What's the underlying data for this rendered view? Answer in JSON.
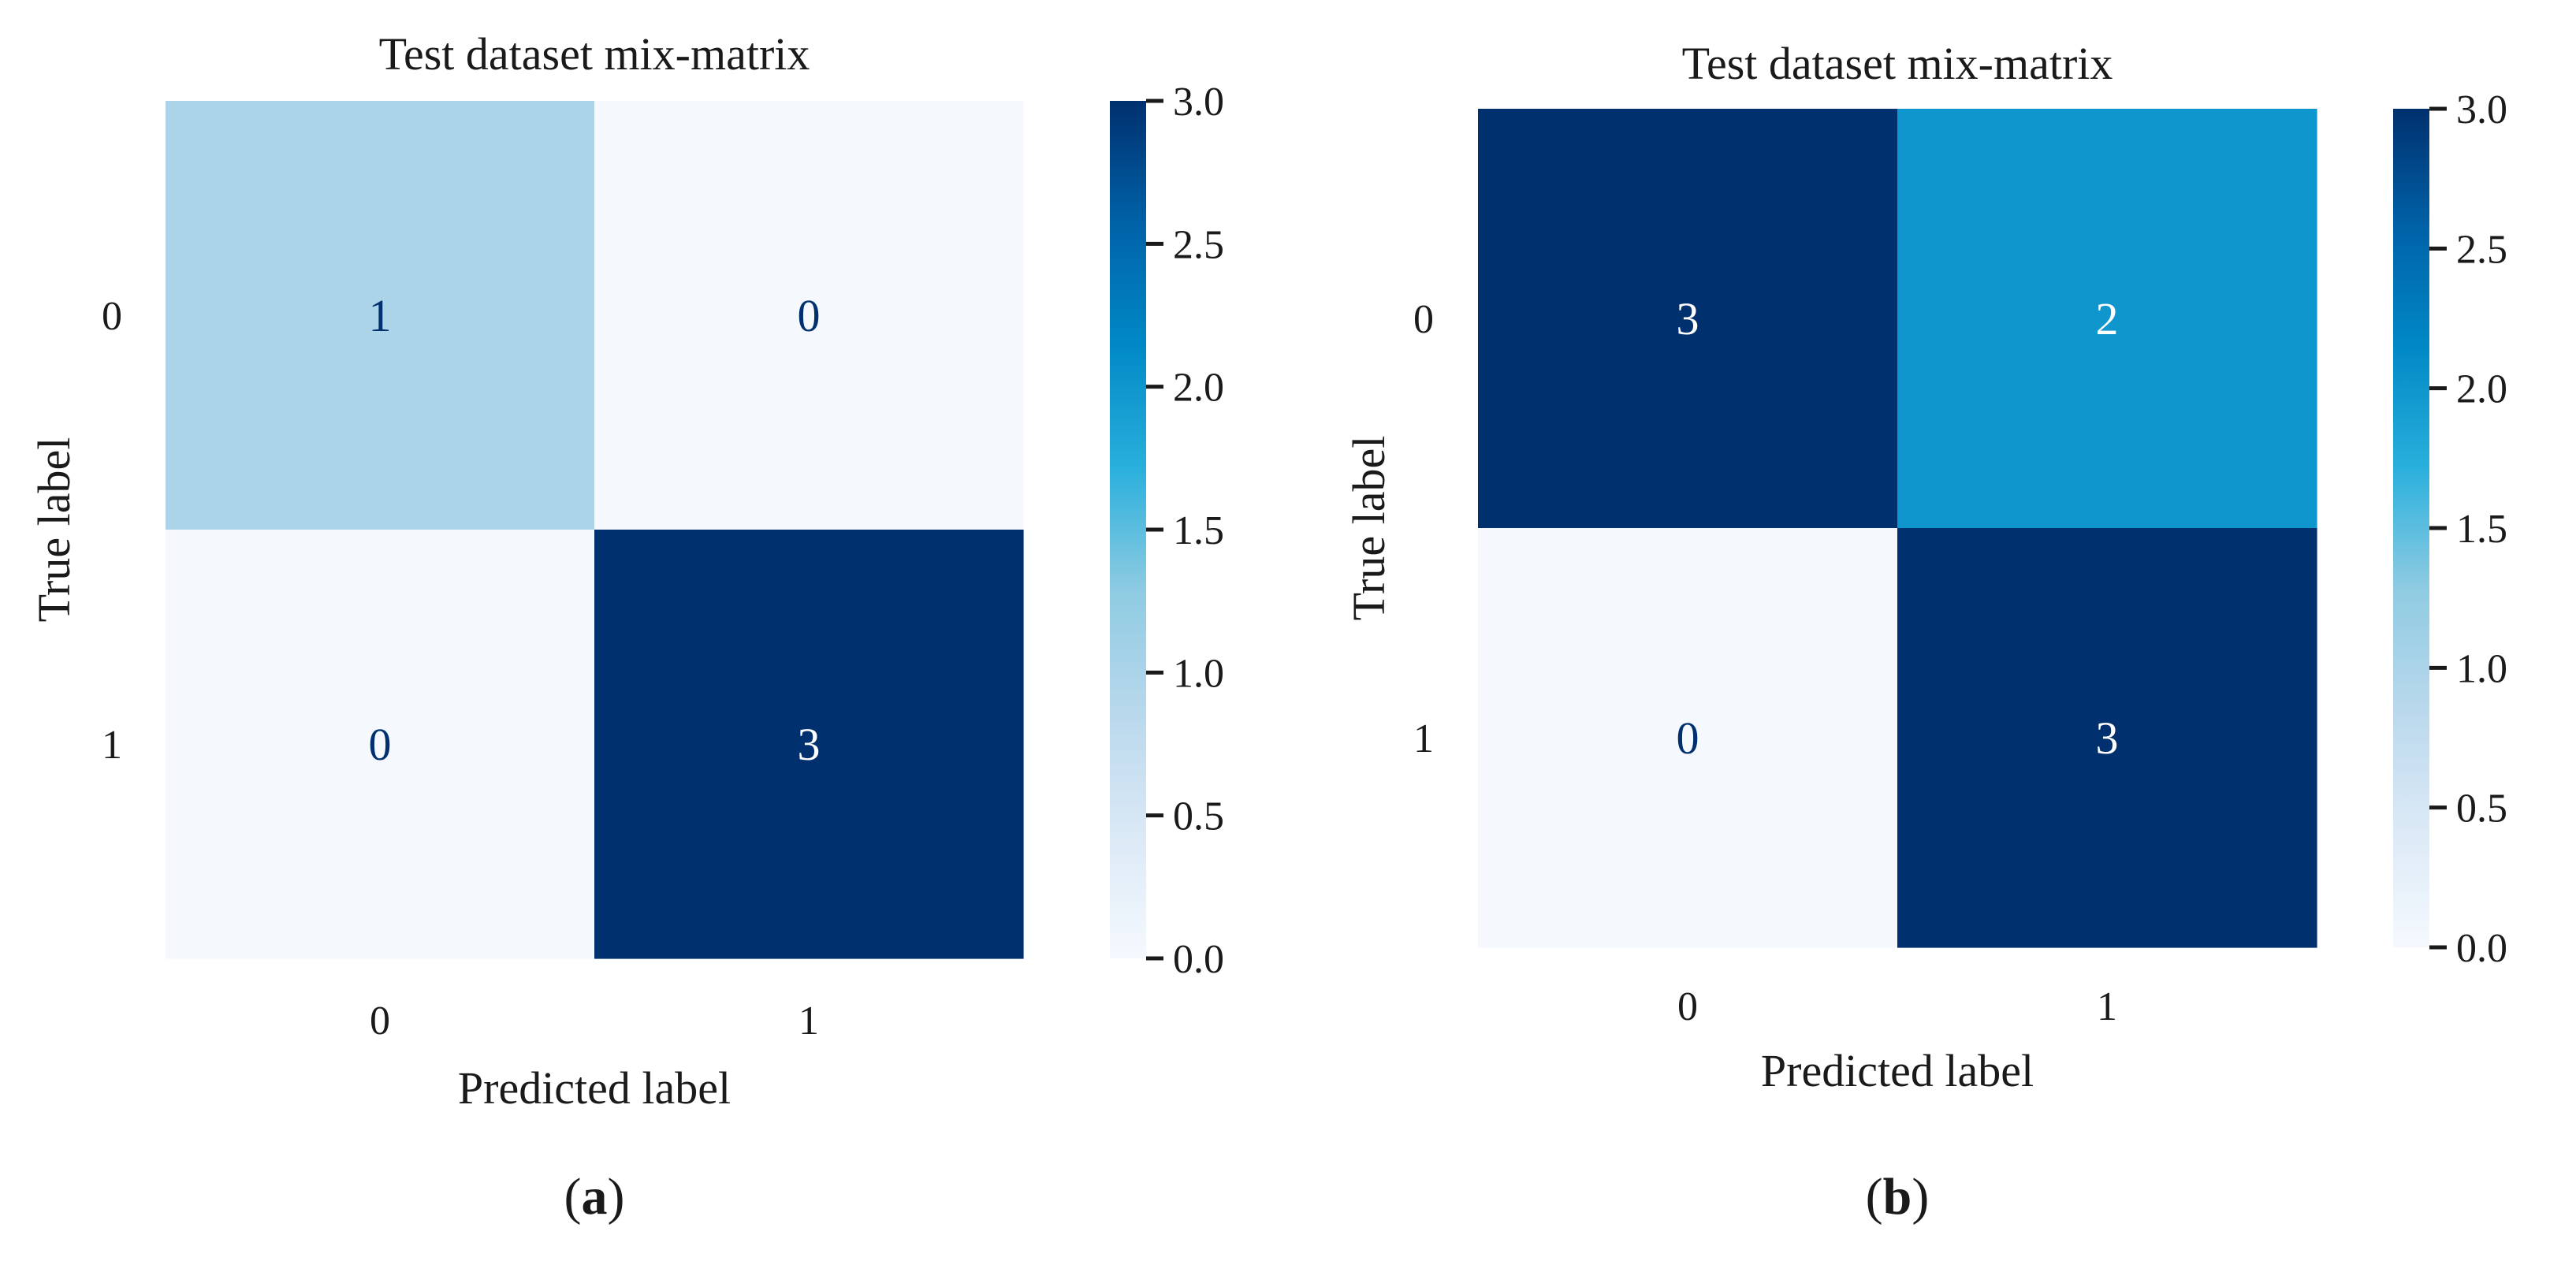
{
  "chart_data": [
    {
      "type": "heatmap",
      "panel_label": "a",
      "title": "Test dataset mix-matrix",
      "xlabel": "Predicted label",
      "ylabel": "True label",
      "x_tick_labels": [
        "0",
        "1"
      ],
      "y_tick_labels": [
        "0",
        "1"
      ],
      "matrix": [
        [
          1,
          0
        ],
        [
          0,
          3
        ]
      ],
      "colorbar": {
        "min": 0.0,
        "max": 3.0,
        "ticks": [
          "0.0",
          "0.5",
          "1.0",
          "1.5",
          "2.0",
          "2.5",
          "3.0"
        ],
        "colormap": "Blues"
      }
    },
    {
      "type": "heatmap",
      "panel_label": "b",
      "title": "Test dataset mix-matrix",
      "xlabel": "Predicted label",
      "ylabel": "True label",
      "x_tick_labels": [
        "0",
        "1"
      ],
      "y_tick_labels": [
        "0",
        "1"
      ],
      "matrix": [
        [
          3,
          2
        ],
        [
          0,
          3
        ]
      ],
      "colorbar": {
        "min": 0.0,
        "max": 3.0,
        "ticks": [
          "0.0",
          "0.5",
          "1.0",
          "1.5",
          "2.0",
          "2.5",
          "3.0"
        ],
        "colormap": "Blues"
      }
    }
  ],
  "colors": {
    "cmap_stops": [
      "#f5f9fe",
      "#dbe9f6",
      "#b9d8ec",
      "#8ecbe2",
      "#2ab0dc",
      "#0089c6",
      "#0062a8",
      "#00306e"
    ],
    "text_dark": "#00306e",
    "text_light": "#ffffff",
    "tick_mark": "#1a1a1a"
  }
}
